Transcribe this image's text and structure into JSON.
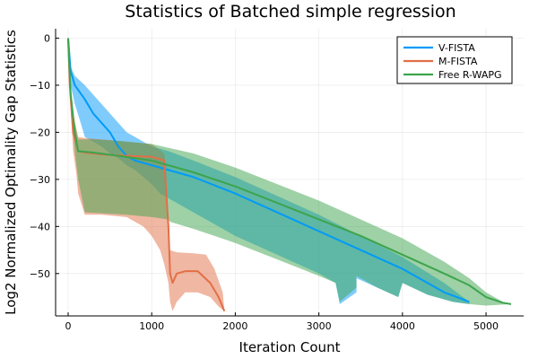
{
  "chart_data": {
    "type": "line",
    "title": "Statistics of Batched simple regression",
    "xlabel": "Iteration Count",
    "ylabel": "Log2 Normalized Optimality Gap Statistics",
    "xlim": [
      -150,
      5450
    ],
    "ylim": [
      -59,
      2
    ],
    "xticks": [
      0,
      1000,
      2000,
      3000,
      4000,
      5000
    ],
    "yticks": [
      0,
      -10,
      -20,
      -30,
      -40,
      -50
    ],
    "grid": true,
    "legend_position": "top-right",
    "series": [
      {
        "name": "V-FISTA",
        "color": "#009af9",
        "mean": [
          [
            0,
            0
          ],
          [
            30,
            -7
          ],
          [
            80,
            -10
          ],
          [
            200,
            -13
          ],
          [
            300,
            -16
          ],
          [
            400,
            -18
          ],
          [
            500,
            -20
          ],
          [
            600,
            -23
          ],
          [
            700,
            -25
          ],
          [
            800,
            -26
          ],
          [
            1000,
            -27
          ],
          [
            1200,
            -28
          ],
          [
            1500,
            -29.5
          ],
          [
            2000,
            -33
          ],
          [
            2500,
            -37
          ],
          [
            3000,
            -41
          ],
          [
            3500,
            -45
          ],
          [
            4000,
            -49
          ],
          [
            4500,
            -54
          ],
          [
            4800,
            -56
          ]
        ],
        "band_upper": [
          [
            0,
            0
          ],
          [
            30,
            -6
          ],
          [
            80,
            -8
          ],
          [
            200,
            -10
          ],
          [
            300,
            -12
          ],
          [
            400,
            -14
          ],
          [
            500,
            -16
          ],
          [
            600,
            -18
          ],
          [
            700,
            -20
          ],
          [
            800,
            -21
          ],
          [
            900,
            -22
          ],
          [
            1000,
            -23
          ],
          [
            1200,
            -24
          ],
          [
            1500,
            -26
          ],
          [
            2000,
            -29.5
          ],
          [
            2500,
            -33.5
          ],
          [
            3000,
            -37.5
          ],
          [
            3500,
            -42
          ],
          [
            4000,
            -46.5
          ],
          [
            4500,
            -52
          ],
          [
            4800,
            -56
          ]
        ],
        "band_lower": [
          [
            0,
            0
          ],
          [
            30,
            -10
          ],
          [
            80,
            -14
          ],
          [
            150,
            -18
          ],
          [
            200,
            -21
          ],
          [
            300,
            -22
          ],
          [
            400,
            -23
          ],
          [
            500,
            -24.5
          ],
          [
            600,
            -25.5
          ],
          [
            700,
            -27
          ],
          [
            800,
            -28
          ],
          [
            900,
            -29.5
          ],
          [
            1000,
            -31
          ],
          [
            1100,
            -33
          ],
          [
            1200,
            -34
          ],
          [
            1500,
            -37
          ],
          [
            2000,
            -42
          ],
          [
            2500,
            -46
          ],
          [
            3000,
            -50
          ],
          [
            3200,
            -52
          ],
          [
            3250,
            -56.5
          ],
          [
            3450,
            -54
          ],
          [
            3450,
            -51
          ],
          [
            3700,
            -53
          ],
          [
            3950,
            -55
          ],
          [
            4000,
            -52
          ],
          [
            4300,
            -54.5
          ],
          [
            4600,
            -56
          ],
          [
            4800,
            -56.5
          ]
        ]
      },
      {
        "name": "M-FISTA",
        "color": "#e26f46",
        "mean": [
          [
            0,
            0
          ],
          [
            20,
            -10
          ],
          [
            60,
            -20
          ],
          [
            120,
            -24
          ],
          [
            200,
            -24.3
          ],
          [
            400,
            -24.7
          ],
          [
            700,
            -25
          ],
          [
            1000,
            -25.2
          ],
          [
            1150,
            -26
          ],
          [
            1200,
            -40
          ],
          [
            1220,
            -50
          ],
          [
            1250,
            -52
          ],
          [
            1300,
            -50
          ],
          [
            1400,
            -49.5
          ],
          [
            1550,
            -49.5
          ],
          [
            1700,
            -52
          ],
          [
            1800,
            -55
          ],
          [
            1870,
            -58
          ]
        ],
        "band_upper": [
          [
            0,
            0
          ],
          [
            20,
            -8
          ],
          [
            60,
            -16
          ],
          [
            120,
            -21
          ],
          [
            200,
            -21.2
          ],
          [
            400,
            -21.5
          ],
          [
            700,
            -22
          ],
          [
            1000,
            -22.5
          ],
          [
            1150,
            -24.5
          ],
          [
            1170,
            -27
          ],
          [
            1200,
            -40
          ],
          [
            1210,
            -45
          ],
          [
            1300,
            -45.5
          ],
          [
            1500,
            -45.7
          ],
          [
            1650,
            -46
          ],
          [
            1750,
            -49
          ],
          [
            1850,
            -54
          ],
          [
            1870,
            -58
          ]
        ],
        "band_lower": [
          [
            0,
            0
          ],
          [
            20,
            -12
          ],
          [
            60,
            -24
          ],
          [
            100,
            -29
          ],
          [
            120,
            -33
          ],
          [
            200,
            -37.5
          ],
          [
            400,
            -37.5
          ],
          [
            700,
            -38
          ],
          [
            900,
            -40
          ],
          [
            1000,
            -42
          ],
          [
            1100,
            -45
          ],
          [
            1150,
            -48
          ],
          [
            1200,
            -52
          ],
          [
            1220,
            -56
          ],
          [
            1250,
            -58
          ],
          [
            1300,
            -56
          ],
          [
            1400,
            -54
          ],
          [
            1550,
            -54
          ],
          [
            1700,
            -55
          ],
          [
            1800,
            -57
          ],
          [
            1870,
            -58
          ]
        ]
      },
      {
        "name": "Free R-WAPG",
        "color": "#3da44d",
        "mean": [
          [
            0,
            0
          ],
          [
            30,
            -12
          ],
          [
            80,
            -20
          ],
          [
            120,
            -24
          ],
          [
            300,
            -24.3
          ],
          [
            600,
            -25
          ],
          [
            1000,
            -26
          ],
          [
            1500,
            -28.5
          ],
          [
            2000,
            -31.5
          ],
          [
            2500,
            -35
          ],
          [
            3000,
            -38.5
          ],
          [
            3500,
            -42
          ],
          [
            4000,
            -46
          ],
          [
            4500,
            -50
          ],
          [
            4800,
            -52.5
          ],
          [
            5000,
            -55
          ],
          [
            5200,
            -56.2
          ],
          [
            5300,
            -56.5
          ]
        ],
        "band_upper": [
          [
            0,
            0
          ],
          [
            30,
            -10
          ],
          [
            80,
            -18
          ],
          [
            120,
            -21.5
          ],
          [
            300,
            -21.5
          ],
          [
            600,
            -21.8
          ],
          [
            1000,
            -22.5
          ],
          [
            1500,
            -24.5
          ],
          [
            2000,
            -27.5
          ],
          [
            2500,
            -31
          ],
          [
            3000,
            -34.5
          ],
          [
            3500,
            -38.5
          ],
          [
            4000,
            -42.5
          ],
          [
            4500,
            -47.5
          ],
          [
            4800,
            -51
          ],
          [
            5000,
            -54
          ],
          [
            5200,
            -56
          ],
          [
            5300,
            -56.5
          ]
        ],
        "band_lower": [
          [
            0,
            0
          ],
          [
            30,
            -14
          ],
          [
            80,
            -24
          ],
          [
            120,
            -30
          ],
          [
            200,
            -37
          ],
          [
            400,
            -37.2
          ],
          [
            700,
            -37.5
          ],
          [
            1000,
            -38
          ],
          [
            1200,
            -38.5
          ],
          [
            1220,
            -39
          ],
          [
            1500,
            -40.5
          ],
          [
            2000,
            -43.5
          ],
          [
            2500,
            -47
          ],
          [
            3000,
            -50.5
          ],
          [
            3200,
            -52
          ],
          [
            3250,
            -56
          ],
          [
            3450,
            -53
          ],
          [
            3450,
            -50.5
          ],
          [
            3700,
            -53
          ],
          [
            3950,
            -55
          ],
          [
            4000,
            -52
          ],
          [
            4300,
            -54.5
          ],
          [
            4600,
            -56
          ],
          [
            4800,
            -56.5
          ],
          [
            5000,
            -56.8
          ],
          [
            5300,
            -56.5
          ]
        ]
      }
    ]
  }
}
